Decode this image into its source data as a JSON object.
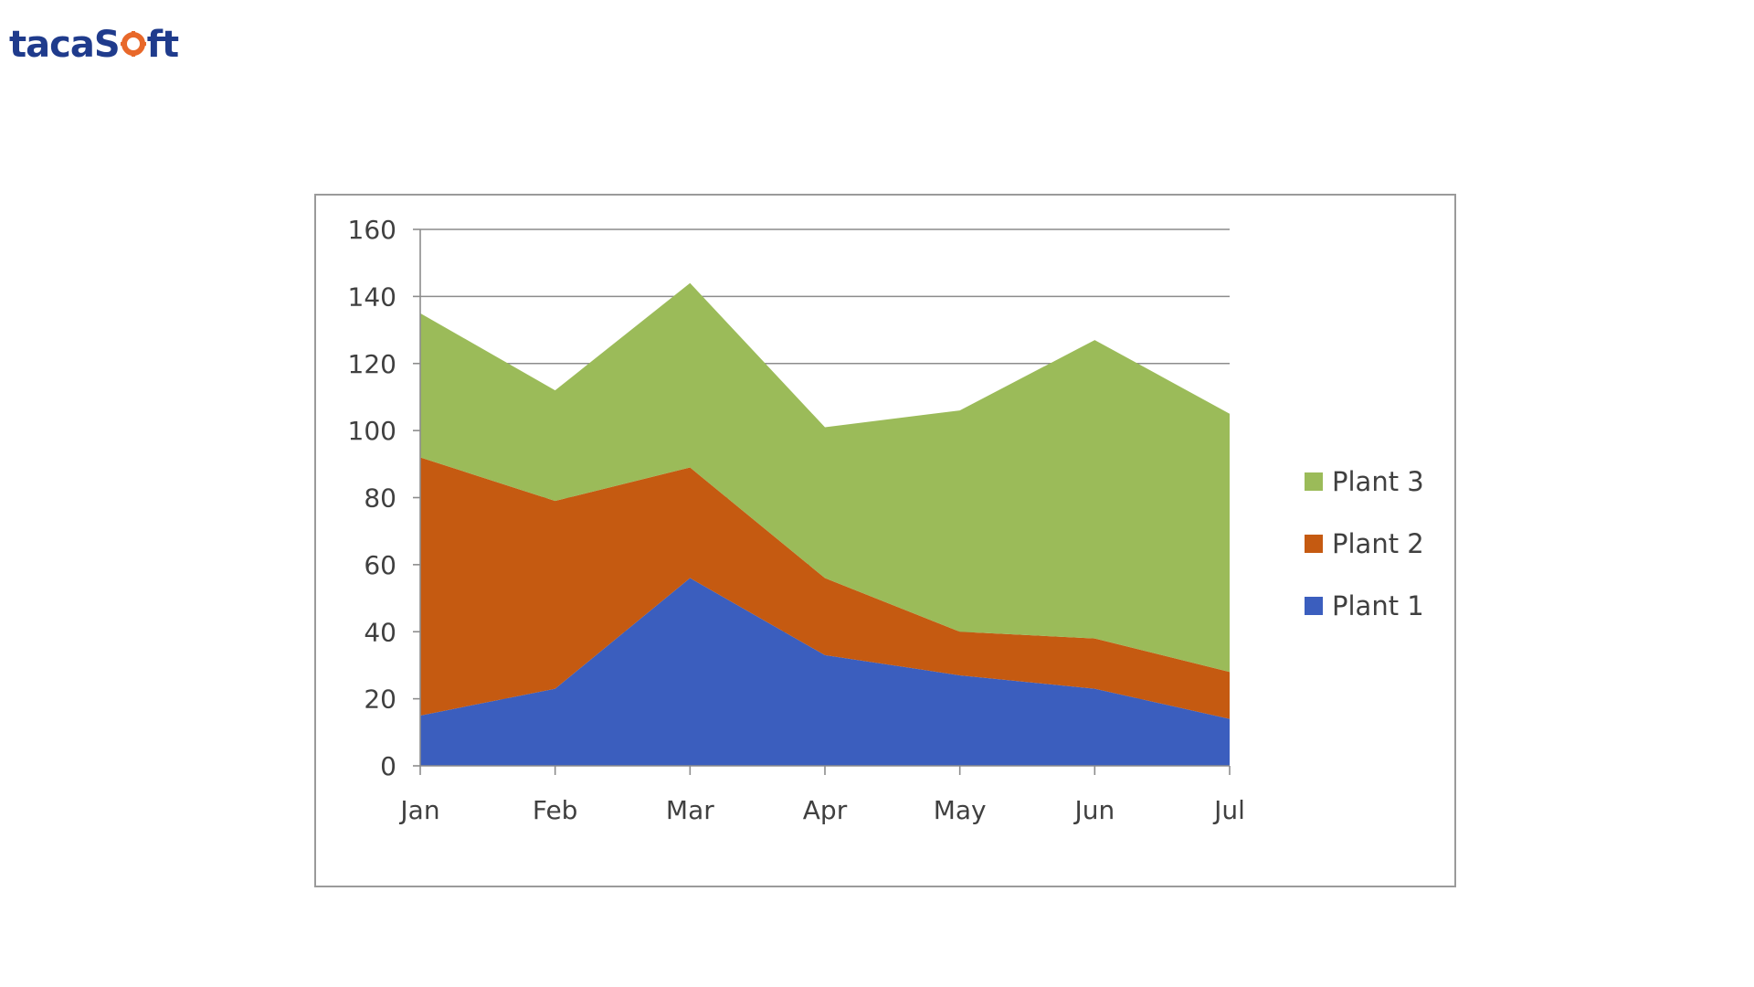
{
  "brand": {
    "logo_text_left": "tacaS",
    "logo_text_right": "ft",
    "logo_glyph": "gear-o"
  },
  "chart_data": {
    "type": "area",
    "stacked": true,
    "categories": [
      "Jan",
      "Feb",
      "Mar",
      "Apr",
      "May",
      "Jun",
      "Jul"
    ],
    "ylim": [
      0,
      160
    ],
    "yticks": [
      "0",
      "20",
      "40",
      "60",
      "80",
      "100",
      "120",
      "140",
      "160"
    ],
    "grid": true,
    "legend_position": "right",
    "series": [
      {
        "name": "Plant 1",
        "color": "#3b5ebe",
        "values": [
          15,
          23,
          56,
          33,
          27,
          23,
          14
        ]
      },
      {
        "name": "Plant 2",
        "color": "#c55a11",
        "values": [
          77,
          56,
          33,
          23,
          13,
          15,
          14
        ]
      },
      {
        "name": "Plant 3",
        "color": "#9bbb59",
        "values": [
          43,
          33,
          55,
          45,
          66,
          89,
          77
        ]
      }
    ],
    "legend_order": [
      "Plant 3",
      "Plant 2",
      "Plant 1"
    ]
  }
}
